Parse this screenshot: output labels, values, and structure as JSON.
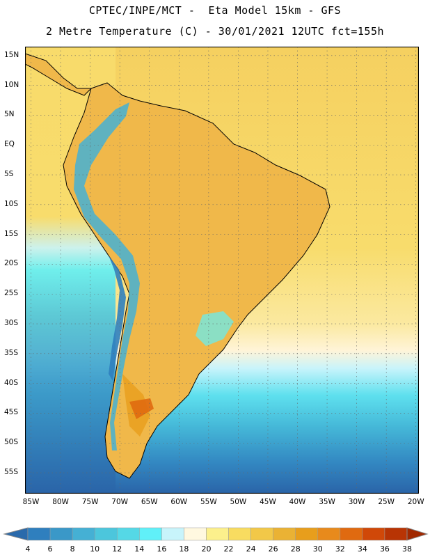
{
  "header": {
    "line1": "CPTEC/INPE/MCT -  Eta Model 15km - GFS",
    "line2": "2 Metre Temperature (C) - 30/01/2021 12UTC fct=155h"
  },
  "map": {
    "lat_labels": [
      "15N",
      "10N",
      "5N",
      "EQ",
      "5S",
      "10S",
      "15S",
      "20S",
      "25S",
      "30S",
      "35S",
      "40S",
      "45S",
      "50S",
      "55S"
    ],
    "lon_labels": [
      "85W",
      "80W",
      "75W",
      "70W",
      "65W",
      "60W",
      "55W",
      "50W",
      "45W",
      "40W",
      "35W",
      "30W",
      "25W",
      "20W"
    ],
    "lat_range": [
      16.5,
      -58.5
    ],
    "lon_range": [
      -86,
      -19.5
    ],
    "ocean_color": "#f7d864",
    "land_color": "#f0b84a"
  },
  "colorbar": {
    "levels": [
      "4",
      "6",
      "8",
      "10",
      "12",
      "14",
      "16",
      "18",
      "20",
      "22",
      "24",
      "26",
      "28",
      "30",
      "32",
      "34",
      "36",
      "38"
    ],
    "colors": [
      "#2a6aab",
      "#2f7fbe",
      "#3a98c8",
      "#45b0d4",
      "#4cc6dc",
      "#55d8e6",
      "#60f0f8",
      "#c8f4fb",
      "#fff8e0",
      "#fcf08c",
      "#f8dc60",
      "#f2c848",
      "#eab234",
      "#e89e1c",
      "#e88a1c",
      "#e06a10",
      "#d04808",
      "#b83404",
      "#a02800"
    ]
  }
}
